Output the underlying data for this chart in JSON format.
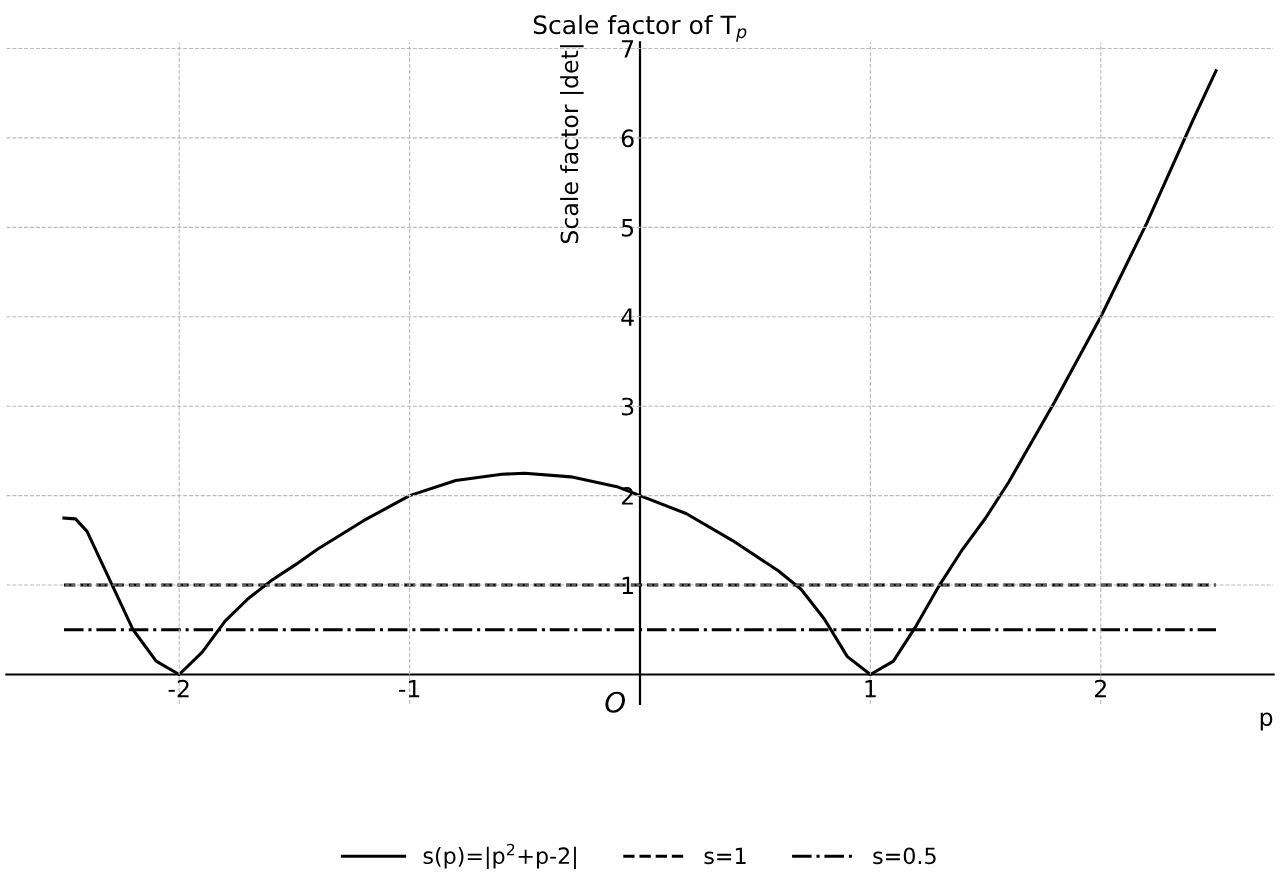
{
  "chart_data": {
    "type": "line",
    "title": "Scale factor of T$_{p}$",
    "xlabel": "p",
    "ylabel": "Scale factor |det|",
    "annotations": [
      "O"
    ],
    "xlim": [
      -2.75,
      2.75
    ],
    "ylim": [
      -0.33,
      7.07
    ],
    "xticks": [
      {
        "value": -2,
        "label": "-2"
      },
      {
        "value": -1,
        "label": "-1"
      },
      1,
      2
    ],
    "yticks": [
      1,
      2,
      3,
      4,
      5,
      6,
      7
    ],
    "grid": true,
    "legend": "bottom",
    "marker": "none",
    "series": [
      {
        "name": "s(p)=|p$^{2}$+p-2|",
        "color": "#000000",
        "line_style": "solid",
        "x": [
          -2.5,
          -2.45,
          -2.4,
          -2.3,
          -2.2,
          -2.1,
          -2.0,
          -1.9,
          -1.8,
          -1.7,
          -1.6,
          -1.5,
          -1.4,
          -1.2,
          -1.0,
          -0.8,
          -0.6,
          -0.5,
          -0.3,
          -0.1,
          0.0,
          0.2,
          0.4,
          0.6,
          0.7,
          0.8,
          0.9,
          1.0,
          1.1,
          1.2,
          1.3,
          1.4,
          1.5,
          1.6,
          1.8,
          2.0,
          2.2,
          2.4,
          2.5
        ],
        "values": [
          1.75,
          1.74,
          1.6,
          1.05,
          0.5,
          0.15,
          0.0,
          0.25,
          0.6,
          0.85,
          1.05,
          1.22,
          1.4,
          1.72,
          2.0,
          2.17,
          2.24,
          2.25,
          2.21,
          2.1,
          2.0,
          1.8,
          1.5,
          1.16,
          0.95,
          0.62,
          0.2,
          0.0,
          0.15,
          0.55,
          1.0,
          1.4,
          1.75,
          2.15,
          3.05,
          4.0,
          5.05,
          6.2,
          6.75
        ]
      },
      {
        "name": "s=1",
        "color": "#000000",
        "line_style": "dashed",
        "x": [
          -2.5,
          2.5
        ],
        "values": [
          1,
          1
        ]
      },
      {
        "name": "s=0.5",
        "color": "#000000",
        "line_style": "dashdot",
        "x": [
          -2.5,
          2.5
        ],
        "values": [
          0.5,
          0.5
        ]
      }
    ]
  }
}
